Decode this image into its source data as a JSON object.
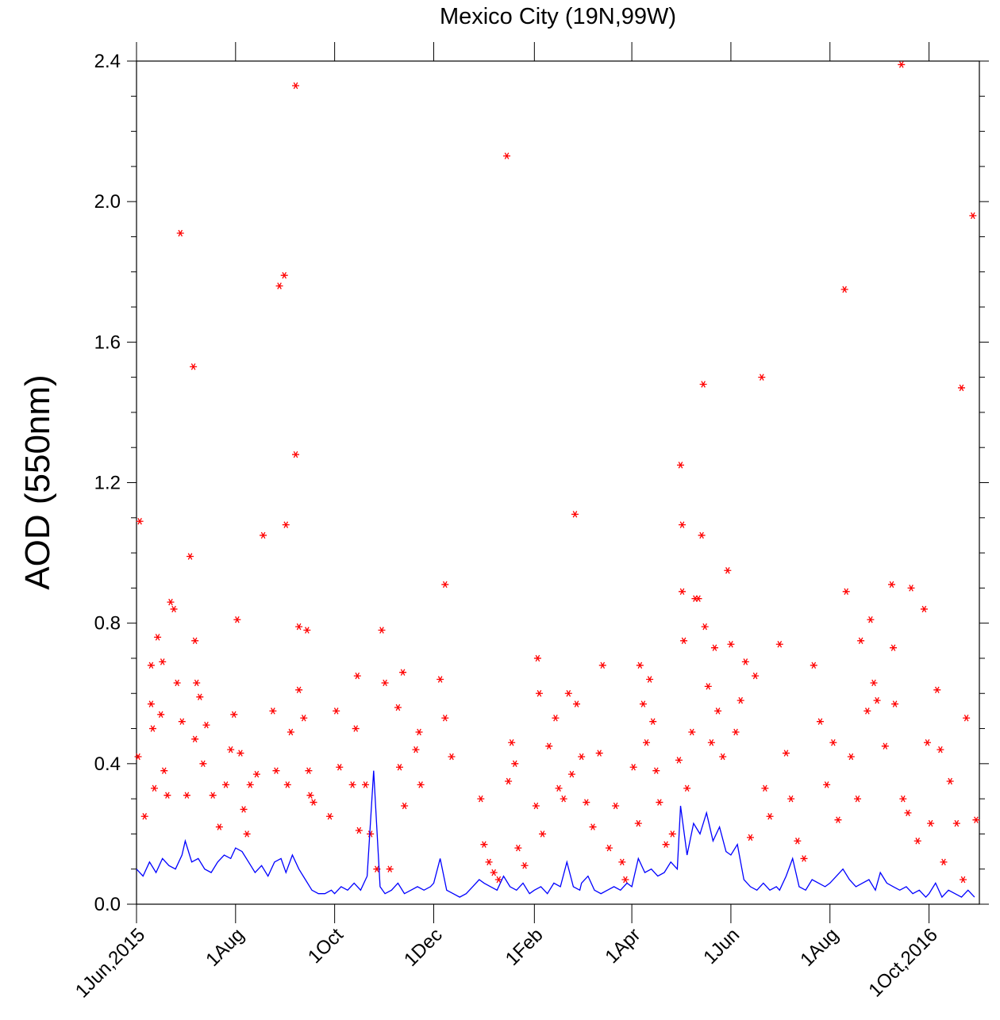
{
  "chart_data": {
    "type": "line",
    "title": "Mexico City (19N,99W)",
    "y_label": "AOD (550nm)",
    "xlim": [
      "2015-06-01",
      "2016-11-01"
    ],
    "xticks": [
      {
        "value": "2015-06-01",
        "label": "1Jun,2015"
      },
      {
        "value": "2015-08-01",
        "label": "1Aug"
      },
      {
        "value": "2015-10-01",
        "label": "1Oct"
      },
      {
        "value": "2015-12-01",
        "label": "1Dec"
      },
      {
        "value": "2016-02-01",
        "label": "1Feb"
      },
      {
        "value": "2016-04-01",
        "label": "1Apr"
      },
      {
        "value": "2016-06-01",
        "label": "1Jun"
      },
      {
        "value": "2016-08-01",
        "label": "1Aug"
      },
      {
        "value": "2016-10-01",
        "label": "1Oct,2016"
      }
    ],
    "ylim": [
      0,
      2.4
    ],
    "yticks": [
      {
        "value": 0,
        "label": "0.0"
      },
      0.4,
      0.8,
      1.2,
      1.6,
      {
        "value": 2,
        "label": "2.0"
      },
      2.4
    ],
    "yminorticks": [
      0.1,
      0.2,
      0.3,
      0.5,
      0.6,
      0.7,
      0.9,
      1.0,
      1.1,
      1.3,
      1.4,
      1.5,
      1.7,
      1.8,
      1.9,
      2.1,
      2.2,
      2.3
    ],
    "series": [
      {
        "type": "scatter",
        "marker": "asterisk",
        "color": "#ff0000",
        "x": [
          "2015-06-03",
          "2015-06-02",
          "2015-06-06",
          "2015-06-10",
          "2015-06-10",
          "2015-06-11",
          "2015-06-12",
          "2015-06-14",
          "2015-06-16",
          "2015-06-17",
          "2015-06-18",
          "2015-06-20",
          "2015-06-22",
          "2015-06-24",
          "2015-06-26",
          "2015-06-28",
          "2015-06-29",
          "2015-07-02",
          "2015-07-04",
          "2015-07-06",
          "2015-07-07",
          "2015-07-07",
          "2015-07-08",
          "2015-07-10",
          "2015-07-12",
          "2015-07-14",
          "2015-07-18",
          "2015-07-22",
          "2015-07-26",
          "2015-07-29",
          "2015-07-31",
          "2015-08-02",
          "2015-08-04",
          "2015-08-06",
          "2015-08-08",
          "2015-08-10",
          "2015-08-14",
          "2015-08-18",
          "2015-08-24",
          "2015-08-26",
          "2015-08-28",
          "2015-08-31",
          "2015-09-01",
          "2015-09-02",
          "2015-09-04",
          "2015-09-07",
          "2015-09-07",
          "2015-09-09",
          "2015-09-09",
          "2015-09-12",
          "2015-09-14",
          "2015-09-15",
          "2015-09-16",
          "2015-09-18",
          "2015-09-28",
          "2015-10-02",
          "2015-10-04",
          "2015-10-12",
          "2015-10-15",
          "2015-10-14",
          "2015-10-16",
          "2015-10-20",
          "2015-10-23",
          "2015-10-27",
          "2015-10-30",
          "2015-11-01",
          "2015-11-04",
          "2015-11-09",
          "2015-11-10",
          "2015-11-12",
          "2015-11-13",
          "2015-11-20",
          "2015-11-22",
          "2015-11-23",
          "2015-12-05",
          "2015-12-08",
          "2015-12-08",
          "2015-12-12",
          "2015-12-30",
          "2016-01-01",
          "2016-01-04",
          "2016-01-07",
          "2016-01-10",
          "2016-01-15",
          "2016-01-16",
          "2016-01-18",
          "2016-01-20",
          "2016-01-22",
          "2016-01-26",
          "2016-02-02",
          "2016-02-03",
          "2016-02-04",
          "2016-02-06",
          "2016-02-10",
          "2016-02-14",
          "2016-02-16",
          "2016-02-19",
          "2016-02-22",
          "2016-02-24",
          "2016-02-26",
          "2016-02-27",
          "2016-03-01",
          "2016-03-04",
          "2016-03-08",
          "2016-03-12",
          "2016-03-14",
          "2016-03-18",
          "2016-03-22",
          "2016-03-26",
          "2016-03-28",
          "2016-04-02",
          "2016-04-05",
          "2016-04-06",
          "2016-04-08",
          "2016-04-10",
          "2016-04-12",
          "2016-04-14",
          "2016-04-16",
          "2016-04-18",
          "2016-04-22",
          "2016-04-26",
          "2016-04-30",
          "2016-05-01",
          "2016-05-02",
          "2016-05-02",
          "2016-05-03",
          "2016-05-05",
          "2016-05-08",
          "2016-05-10",
          "2016-05-12",
          "2016-05-14",
          "2016-05-15",
          "2016-05-16",
          "2016-05-18",
          "2016-05-20",
          "2016-05-22",
          "2016-05-24",
          "2016-05-27",
          "2016-05-30",
          "2016-06-01",
          "2016-06-04",
          "2016-06-07",
          "2016-06-10",
          "2016-06-13",
          "2016-06-16",
          "2016-06-20",
          "2016-06-22",
          "2016-06-25",
          "2016-07-01",
          "2016-07-05",
          "2016-07-08",
          "2016-07-12",
          "2016-07-16",
          "2016-07-22",
          "2016-07-26",
          "2016-07-30",
          "2016-08-03",
          "2016-08-06",
          "2016-08-10",
          "2016-08-11",
          "2016-08-14",
          "2016-08-18",
          "2016-08-20",
          "2016-08-24",
          "2016-08-26",
          "2016-08-28",
          "2016-08-30",
          "2016-09-04",
          "2016-09-08",
          "2016-09-09",
          "2016-09-10",
          "2016-09-14",
          "2016-09-15",
          "2016-09-18",
          "2016-09-20",
          "2016-09-24",
          "2016-09-28",
          "2016-09-30",
          "2016-10-02",
          "2016-10-06",
          "2016-10-08",
          "2016-10-10",
          "2016-10-14",
          "2016-10-18",
          "2016-10-21",
          "2016-10-22",
          "2016-10-24",
          "2016-10-28",
          "2016-10-30"
        ],
        "values": [
          1.09,
          0.42,
          0.25,
          0.68,
          0.57,
          0.5,
          0.33,
          0.76,
          0.54,
          0.69,
          0.38,
          0.31,
          0.86,
          0.84,
          0.63,
          1.91,
          0.52,
          0.31,
          0.99,
          1.53,
          0.75,
          0.47,
          0.63,
          0.59,
          0.4,
          0.51,
          0.31,
          0.22,
          0.34,
          0.44,
          0.54,
          0.81,
          0.43,
          0.27,
          0.2,
          0.34,
          0.37,
          1.05,
          0.55,
          0.38,
          1.76,
          1.79,
          1.08,
          0.34,
          0.49,
          2.33,
          1.28,
          0.79,
          0.61,
          0.53,
          0.78,
          0.38,
          0.31,
          0.29,
          0.25,
          0.55,
          0.39,
          0.34,
          0.65,
          0.5,
          0.21,
          0.34,
          0.2,
          0.1,
          0.78,
          0.63,
          0.1,
          0.56,
          0.39,
          0.66,
          0.28,
          0.44,
          0.49,
          0.34,
          0.64,
          0.91,
          0.53,
          0.42,
          0.3,
          0.17,
          0.12,
          0.09,
          0.07,
          2.13,
          0.35,
          0.46,
          0.4,
          0.16,
          0.11,
          0.28,
          0.7,
          0.6,
          0.2,
          0.45,
          0.53,
          0.33,
          0.3,
          0.6,
          0.37,
          1.11,
          0.57,
          0.42,
          0.29,
          0.22,
          0.43,
          0.68,
          0.16,
          0.28,
          0.12,
          0.07,
          0.39,
          0.23,
          0.68,
          0.57,
          0.46,
          0.64,
          0.52,
          0.38,
          0.29,
          0.17,
          0.2,
          0.41,
          1.25,
          1.08,
          0.89,
          0.75,
          0.33,
          0.49,
          0.87,
          0.87,
          1.05,
          1.48,
          0.79,
          0.62,
          0.46,
          0.73,
          0.55,
          0.42,
          0.95,
          0.74,
          0.49,
          0.58,
          0.69,
          0.19,
          0.65,
          1.5,
          0.33,
          0.25,
          0.74,
          0.43,
          0.3,
          0.18,
          0.13,
          0.68,
          0.52,
          0.34,
          0.46,
          0.24,
          1.75,
          0.89,
          0.42,
          0.3,
          0.75,
          0.55,
          0.81,
          0.63,
          0.58,
          0.45,
          0.91,
          0.73,
          0.57,
          2.39,
          0.3,
          0.26,
          0.9,
          0.18,
          0.84,
          0.46,
          0.23,
          0.61,
          0.44,
          0.12,
          0.35,
          0.23,
          1.47,
          0.07,
          0.53,
          1.96,
          0.24
        ]
      },
      {
        "type": "line",
        "color": "#0000ff",
        "x": [
          "2015-06-01",
          "2015-06-05",
          "2015-06-09",
          "2015-06-13",
          "2015-06-17",
          "2015-06-21",
          "2015-06-25",
          "2015-06-29",
          "2015-07-01",
          "2015-07-05",
          "2015-07-09",
          "2015-07-13",
          "2015-07-17",
          "2015-07-21",
          "2015-07-25",
          "2015-07-29",
          "2015-08-01",
          "2015-08-05",
          "2015-08-09",
          "2015-08-13",
          "2015-08-17",
          "2015-08-21",
          "2015-08-25",
          "2015-08-29",
          "2015-09-01",
          "2015-09-05",
          "2015-09-09",
          "2015-09-13",
          "2015-09-17",
          "2015-09-21",
          "2015-09-25",
          "2015-09-29",
          "2015-10-01",
          "2015-10-05",
          "2015-10-09",
          "2015-10-13",
          "2015-10-17",
          "2015-10-21",
          "2015-10-25",
          "2015-10-29",
          "2015-11-01",
          "2015-11-05",
          "2015-11-09",
          "2015-11-13",
          "2015-11-17",
          "2015-11-21",
          "2015-11-25",
          "2015-11-29",
          "2015-12-01",
          "2015-12-05",
          "2015-12-09",
          "2015-12-13",
          "2015-12-17",
          "2015-12-21",
          "2015-12-25",
          "2015-12-29",
          "2016-01-01",
          "2016-01-05",
          "2016-01-09",
          "2016-01-13",
          "2016-01-17",
          "2016-01-21",
          "2016-01-25",
          "2016-01-29",
          "2016-02-01",
          "2016-02-05",
          "2016-02-09",
          "2016-02-13",
          "2016-02-17",
          "2016-02-21",
          "2016-02-25",
          "2016-02-29",
          "2016-03-01",
          "2016-03-05",
          "2016-03-09",
          "2016-03-13",
          "2016-03-17",
          "2016-03-21",
          "2016-03-25",
          "2016-03-29",
          "2016-04-01",
          "2016-04-05",
          "2016-04-09",
          "2016-04-13",
          "2016-04-17",
          "2016-04-21",
          "2016-04-25",
          "2016-04-29",
          "2016-05-01",
          "2016-05-05",
          "2016-05-09",
          "2016-05-13",
          "2016-05-17",
          "2016-05-21",
          "2016-05-25",
          "2016-05-29",
          "2016-06-01",
          "2016-06-05",
          "2016-06-09",
          "2016-06-13",
          "2016-06-17",
          "2016-06-21",
          "2016-06-25",
          "2016-06-29",
          "2016-07-01",
          "2016-07-05",
          "2016-07-09",
          "2016-07-13",
          "2016-07-17",
          "2016-07-21",
          "2016-07-25",
          "2016-07-29",
          "2016-08-01",
          "2016-08-05",
          "2016-08-09",
          "2016-08-13",
          "2016-08-17",
          "2016-08-21",
          "2016-08-25",
          "2016-08-29",
          "2016-09-01",
          "2016-09-05",
          "2016-09-09",
          "2016-09-13",
          "2016-09-17",
          "2016-09-21",
          "2016-09-25",
          "2016-09-29",
          "2016-10-01",
          "2016-10-05",
          "2016-10-09",
          "2016-10-13",
          "2016-10-17",
          "2016-10-21",
          "2016-10-25",
          "2016-10-29"
        ],
        "values": [
          0.1,
          0.08,
          0.12,
          0.09,
          0.13,
          0.11,
          0.1,
          0.14,
          0.18,
          0.12,
          0.13,
          0.1,
          0.09,
          0.12,
          0.14,
          0.13,
          0.16,
          0.15,
          0.12,
          0.09,
          0.11,
          0.08,
          0.12,
          0.13,
          0.09,
          0.14,
          0.1,
          0.07,
          0.04,
          0.03,
          0.03,
          0.04,
          0.03,
          0.05,
          0.04,
          0.06,
          0.04,
          0.08,
          0.38,
          0.05,
          0.03,
          0.04,
          0.06,
          0.03,
          0.04,
          0.05,
          0.04,
          0.05,
          0.06,
          0.13,
          0.04,
          0.03,
          0.02,
          0.03,
          0.05,
          0.07,
          0.06,
          0.05,
          0.04,
          0.08,
          0.05,
          0.04,
          0.06,
          0.03,
          0.04,
          0.05,
          0.03,
          0.06,
          0.05,
          0.12,
          0.05,
          0.04,
          0.06,
          0.08,
          0.04,
          0.03,
          0.04,
          0.05,
          0.04,
          0.06,
          0.05,
          0.13,
          0.09,
          0.1,
          0.08,
          0.09,
          0.12,
          0.1,
          0.28,
          0.14,
          0.23,
          0.2,
          0.26,
          0.18,
          0.22,
          0.15,
          0.14,
          0.17,
          0.07,
          0.05,
          0.04,
          0.06,
          0.04,
          0.05,
          0.04,
          0.08,
          0.13,
          0.05,
          0.04,
          0.07,
          0.06,
          0.05,
          0.06,
          0.08,
          0.1,
          0.07,
          0.05,
          0.06,
          0.07,
          0.04,
          0.09,
          0.06,
          0.05,
          0.04,
          0.05,
          0.03,
          0.04,
          0.02,
          0.03,
          0.06,
          0.02,
          0.04,
          0.03,
          0.02,
          0.04,
          0.02
        ]
      }
    ]
  }
}
